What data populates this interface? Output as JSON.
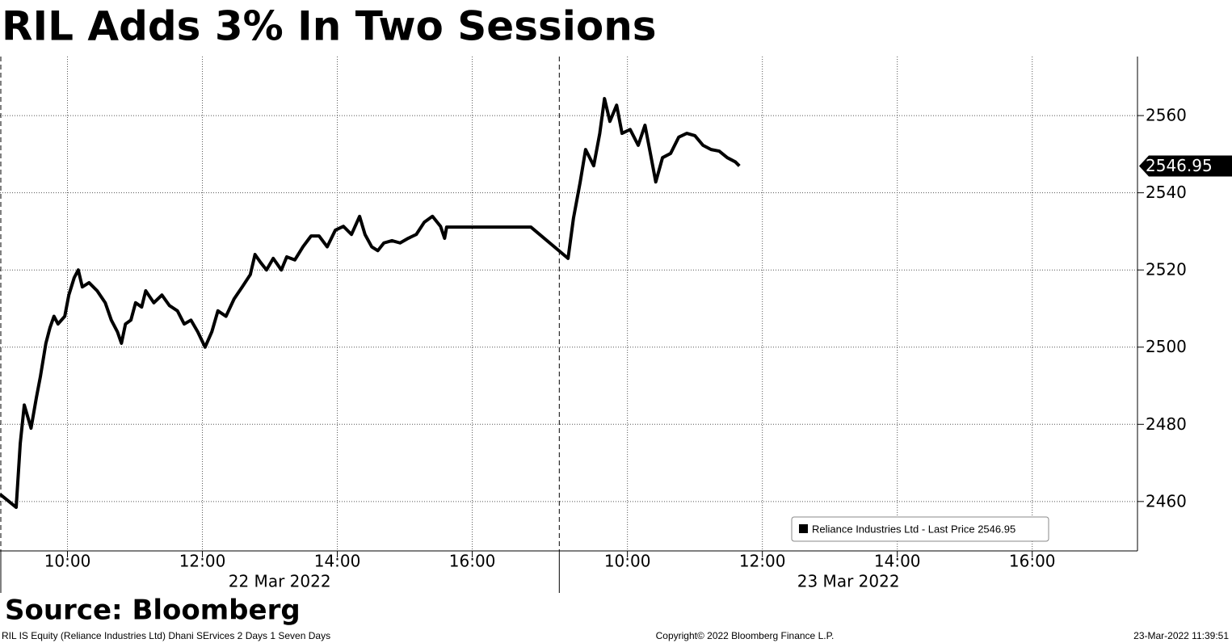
{
  "chart_data": {
    "type": "line",
    "title": "RIL Adds 3% In Two Sessions",
    "source": "Source: Bloomberg",
    "footer_left": "RIL IS Equity (Reliance Industries Ltd) Dhani SErvices 2 Days 1 Seven Days",
    "footer_center": "Copyright© 2022 Bloomberg Finance L.P.",
    "footer_right": "23-Mar-2022 11:39:51",
    "x": [
      9.0,
      9.24,
      9.3,
      9.36,
      9.46,
      9.54,
      9.6,
      9.68,
      9.74,
      9.8,
      9.86,
      9.96,
      10.02,
      10.1,
      10.16,
      10.22,
      10.32,
      10.44,
      10.56,
      10.65,
      10.74,
      10.8,
      10.86,
      10.94,
      11.01,
      11.1,
      11.16,
      11.28,
      11.4,
      11.51,
      11.63,
      11.73,
      11.83,
      11.93,
      12.04,
      12.14,
      12.23,
      12.35,
      12.47,
      12.59,
      12.71,
      12.78,
      12.86,
      12.95,
      13.05,
      13.17,
      13.25,
      13.37,
      13.49,
      13.61,
      13.73,
      13.85,
      13.97,
      14.09,
      14.21,
      14.33,
      14.41,
      14.51,
      14.6,
      14.69,
      14.81,
      14.93,
      15.05,
      15.17,
      15.29,
      15.41,
      15.53,
      15.59,
      15.62,
      16.87,
      17.42,
      17.5,
      17.6,
      17.68,
      17.8,
      17.89,
      17.96,
      18.04,
      18.14,
      18.22,
      18.34,
      18.46,
      18.56,
      18.64,
      18.72,
      18.82,
      18.94,
      19.06,
      19.18,
      19.3,
      19.42,
      19.54,
      19.66,
      19.78,
      19.9,
      19.96
    ],
    "series": [
      {
        "name": "Reliance Industries Ltd - Last Price 2546.95",
        "color": "#000000",
        "values": [
          2461.9,
          2458.5,
          2475,
          2485,
          2479,
          2487,
          2492.5,
          2501,
          2505,
          2508,
          2506,
          2508,
          2513.5,
          2518,
          2520,
          2515.6,
          2516.7,
          2514.6,
          2511.5,
          2507,
          2504,
          2501,
          2506,
          2507,
          2511.5,
          2510.4,
          2514.6,
          2511.5,
          2513.5,
          2510.8,
          2509.4,
          2506,
          2507,
          2504,
          2500,
          2504,
          2509.4,
          2508,
          2512.5,
          2515.6,
          2518.8,
          2524,
          2522,
          2520,
          2523,
          2520,
          2523.4,
          2522.6,
          2526,
          2528.8,
          2528.8,
          2526,
          2530.3,
          2531.3,
          2529.2,
          2533.9,
          2529.2,
          2526,
          2525,
          2527,
          2527.6,
          2527,
          2528.2,
          2529.2,
          2532.4,
          2533.9,
          2531.3,
          2528.2,
          2531.1,
          2531.1,
          2523,
          2533.4,
          2542.8,
          2551.2,
          2547,
          2555.4,
          2564.4,
          2558.5,
          2562.7,
          2555.4,
          2556.4,
          2552.3,
          2557.5,
          2550.2,
          2542.8,
          2549.1,
          2550.2,
          2554.4,
          2555.4,
          2554.8,
          2552.3,
          2551.2,
          2550.8,
          2549.1,
          2548,
          2546.95
        ]
      }
    ],
    "last_price": 2546.95,
    "xlim": [
      9,
      25.86
    ],
    "xticks": [
      {
        "value": 10,
        "label": "10:00"
      },
      {
        "value": 12,
        "label": "12:00"
      },
      {
        "value": 14,
        "label": "14:00"
      },
      {
        "value": 16,
        "label": "16:00"
      },
      {
        "value": 18.3,
        "label": "10:00"
      },
      {
        "value": 20.3,
        "label": "12:00"
      },
      {
        "value": 22.3,
        "label": "14:00"
      },
      {
        "value": 24.3,
        "label": "16:00"
      }
    ],
    "x_groups": [
      {
        "label": "22 Mar 2022",
        "range": [
          9,
          17.29
        ]
      },
      {
        "label": "23 Mar 2022",
        "range": [
          17.29,
          25.86
        ]
      }
    ],
    "session_breaks": [
      9,
      17.29
    ],
    "ylim": [
      2447.2,
      2575.3
    ],
    "yticks": [
      2460,
      2480,
      2500,
      2520,
      2540,
      2560
    ],
    "grid": true
  }
}
